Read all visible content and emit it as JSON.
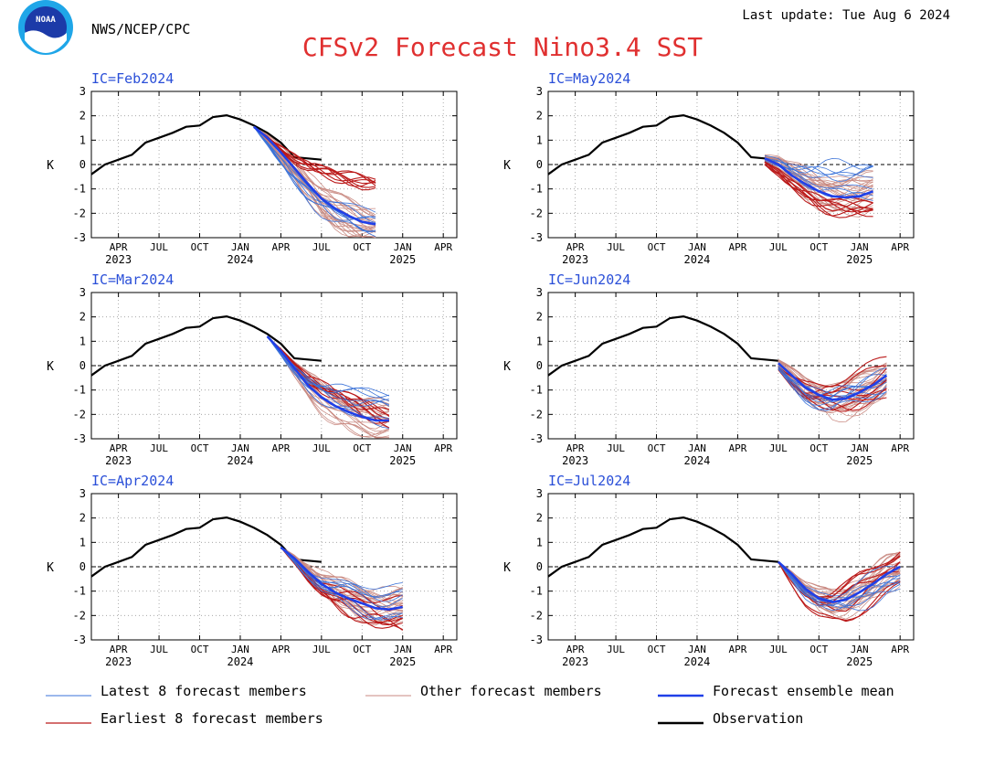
{
  "header": {
    "org": "NWS/NCEP/CPC",
    "last_update": "Last update: Tue Aug  6 2024",
    "title": "CFSv2 Forecast Nino3.4 SST",
    "logo_text": "NOAA"
  },
  "colors": {
    "title": "#e03030",
    "panel_label": "#2a4fd8",
    "latest_members": "#3a72d8",
    "other_members": "#c98a82",
    "ensemble_mean": "#2040e8",
    "earliest_members": "#bb1a1a",
    "observation": "#000000"
  },
  "legend": [
    {
      "key": "latest",
      "label": "Latest 8 forecast members"
    },
    {
      "key": "other",
      "label": "Other forecast members"
    },
    {
      "key": "mean",
      "label": "Forecast ensemble mean"
    },
    {
      "key": "earliest",
      "label": "Earliest 8 forecast members"
    },
    {
      "key": "obs",
      "label": "Observation"
    }
  ],
  "chart_data": {
    "type": "line",
    "ylabel": "K",
    "ylim": [
      -3,
      3
    ],
    "yticks": [
      -3,
      -2,
      -1,
      0,
      1,
      2,
      3
    ],
    "xlim": [
      "2023-02-01",
      "2025-05-01"
    ],
    "xticks": [
      {
        "date": "2023-04-01",
        "label": "APR",
        "year": "2023"
      },
      {
        "date": "2023-07-01",
        "label": "JUL",
        "year": ""
      },
      {
        "date": "2023-10-01",
        "label": "OCT",
        "year": ""
      },
      {
        "date": "2024-01-01",
        "label": "JAN",
        "year": "2024"
      },
      {
        "date": "2024-04-01",
        "label": "APR",
        "year": ""
      },
      {
        "date": "2024-07-01",
        "label": "JUL",
        "year": ""
      },
      {
        "date": "2024-10-01",
        "label": "OCT",
        "year": ""
      },
      {
        "date": "2025-01-01",
        "label": "JAN",
        "year": "2025"
      },
      {
        "date": "2025-04-01",
        "label": "APR",
        "year": ""
      }
    ],
    "grid": true,
    "zero_line": true,
    "observation": [
      [
        "2023-02-01",
        -0.4
      ],
      [
        "2023-03-01",
        0.0
      ],
      [
        "2023-04-01",
        0.2
      ],
      [
        "2023-05-01",
        0.4
      ],
      [
        "2023-06-01",
        0.9
      ],
      [
        "2023-07-01",
        1.1
      ],
      [
        "2023-08-01",
        1.3
      ],
      [
        "2023-09-01",
        1.55
      ],
      [
        "2023-10-01",
        1.6
      ],
      [
        "2023-11-01",
        1.95
      ],
      [
        "2023-12-01",
        2.02
      ],
      [
        "2024-01-01",
        1.85
      ],
      [
        "2024-02-01",
        1.6
      ],
      [
        "2024-03-01",
        1.3
      ],
      [
        "2024-04-01",
        0.9
      ],
      [
        "2024-05-01",
        0.3
      ],
      [
        "2024-06-01",
        0.25
      ],
      [
        "2024-07-01",
        0.2
      ]
    ],
    "panels": [
      {
        "ic_label": "IC=Feb2024",
        "ic": "2024-02-01",
        "mean": [
          [
            "2024-02-01",
            1.55
          ],
          [
            "2024-03-01",
            1.1
          ],
          [
            "2024-04-01",
            0.5
          ],
          [
            "2024-05-01",
            -0.15
          ],
          [
            "2024-06-01",
            -0.8
          ],
          [
            "2024-07-01",
            -1.4
          ],
          [
            "2024-08-01",
            -1.8
          ],
          [
            "2024-09-01",
            -2.1
          ],
          [
            "2024-10-01",
            -2.35
          ],
          [
            "2024-11-01",
            -2.45
          ]
        ],
        "earliest_range": [
          [
            -0.3,
            -0.6
          ],
          [
            -0.7,
            -0.9
          ]
        ],
        "latest_range": [
          [
            -1.5,
            -2.1
          ],
          [
            -1.9,
            -2.9
          ]
        ]
      },
      {
        "ic_label": "IC=May2024",
        "ic": "2024-05-01",
        "mean": [
          [
            "2024-06-01",
            0.25
          ],
          [
            "2024-07-01",
            0.0
          ],
          [
            "2024-08-01",
            -0.45
          ],
          [
            "2024-09-01",
            -0.8
          ],
          [
            "2024-10-01",
            -1.1
          ],
          [
            "2024-11-01",
            -1.3
          ],
          [
            "2024-12-01",
            -1.35
          ],
          [
            "2025-01-01",
            -1.3
          ],
          [
            "2025-02-01",
            -1.1
          ]
        ],
        "earliest_range": [
          [
            -1.0,
            -1.6
          ],
          [
            -1.4,
            -2.2
          ]
        ],
        "latest_range": [
          [
            -0.1,
            -0.6
          ],
          [
            0.4,
            -1.6
          ]
        ]
      },
      {
        "ic_label": "IC=Mar2024",
        "ic": "2024-03-01",
        "mean": [
          [
            "2024-03-01",
            1.2
          ],
          [
            "2024-04-01",
            0.6
          ],
          [
            "2024-05-01",
            -0.1
          ],
          [
            "2024-06-01",
            -0.8
          ],
          [
            "2024-07-01",
            -1.3
          ],
          [
            "2024-08-01",
            -1.65
          ],
          [
            "2024-09-01",
            -1.9
          ],
          [
            "2024-10-01",
            -2.1
          ],
          [
            "2024-11-01",
            -2.25
          ],
          [
            "2024-12-01",
            -2.25
          ]
        ],
        "earliest_range": [
          [
            -0.3,
            -0.6
          ],
          [
            -1.6,
            -2.9
          ]
        ],
        "latest_range": [
          [
            -1.0,
            -1.7
          ],
          [
            -1.1,
            -2.8
          ]
        ]
      },
      {
        "ic_label": "IC=Jun2024",
        "ic": "2024-06-01",
        "mean": [
          [
            "2024-07-01",
            0.1
          ],
          [
            "2024-08-01",
            -0.4
          ],
          [
            "2024-09-01",
            -0.9
          ],
          [
            "2024-10-01",
            -1.2
          ],
          [
            "2024-11-01",
            -1.4
          ],
          [
            "2024-12-01",
            -1.35
          ],
          [
            "2025-01-01",
            -1.1
          ],
          [
            "2025-02-01",
            -0.8
          ],
          [
            "2025-03-01",
            -0.4
          ]
        ],
        "earliest_range": [
          [
            -0.8,
            -1.4
          ],
          [
            0.4,
            -1.2
          ]
        ],
        "latest_range": [
          [
            -1.0,
            -1.9
          ],
          [
            -0.2,
            -1.0
          ]
        ]
      },
      {
        "ic_label": "IC=Apr2024",
        "ic": "2024-04-01",
        "mean": [
          [
            "2024-04-01",
            0.8
          ],
          [
            "2024-05-01",
            0.35
          ],
          [
            "2024-06-01",
            -0.2
          ],
          [
            "2024-07-01",
            -0.7
          ],
          [
            "2024-08-01",
            -1.05
          ],
          [
            "2024-09-01",
            -1.3
          ],
          [
            "2024-10-01",
            -1.5
          ],
          [
            "2024-11-01",
            -1.7
          ],
          [
            "2024-12-01",
            -1.75
          ],
          [
            "2025-01-01",
            -1.65
          ]
        ],
        "earliest_range": [
          [
            -1.0,
            -1.6
          ],
          [
            -1.2,
            -2.8
          ]
        ],
        "latest_range": [
          [
            -0.6,
            -1.4
          ],
          [
            -0.3,
            -2.6
          ]
        ]
      },
      {
        "ic_label": "IC=Jul2024",
        "ic": "2024-07-01",
        "mean": [
          [
            "2024-07-01",
            0.2
          ],
          [
            "2024-08-01",
            -0.3
          ],
          [
            "2024-09-01",
            -0.9
          ],
          [
            "2024-10-01",
            -1.3
          ],
          [
            "2024-11-01",
            -1.45
          ],
          [
            "2024-12-01",
            -1.35
          ],
          [
            "2025-01-01",
            -1.05
          ],
          [
            "2025-02-01",
            -0.7
          ],
          [
            "2025-03-01",
            -0.3
          ],
          [
            "2025-04-01",
            0.0
          ]
        ],
        "earliest_range": [
          [
            -0.9,
            -2.7
          ],
          [
            0.6,
            -0.8
          ]
        ],
        "latest_range": [
          [
            -0.6,
            -1.5
          ],
          [
            0.2,
            -1.2
          ]
        ]
      }
    ]
  }
}
